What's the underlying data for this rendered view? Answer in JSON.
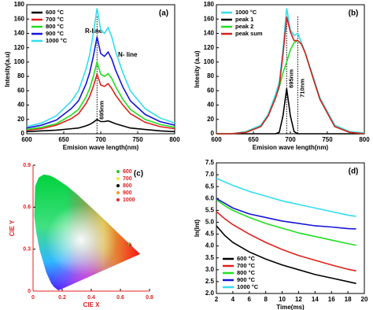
{
  "chart_data": [
    {
      "type": "line",
      "label": "(a)",
      "xlabel": "Emision wave length(nm)",
      "ylabel": "Intesity(a.u)",
      "xlim": [
        600,
        800
      ],
      "xticks": [
        600,
        650,
        700,
        750,
        800
      ],
      "ylim": [
        0,
        180
      ],
      "yticks": [
        0,
        20,
        40,
        60,
        80,
        100,
        120,
        140,
        160,
        180
      ],
      "x": [
        600,
        620,
        640,
        660,
        670,
        680,
        685,
        690,
        695,
        700,
        705,
        710,
        715,
        720,
        730,
        740,
        760,
        780,
        800
      ],
      "series": [
        {
          "name": "600 °C",
          "color": "#000000",
          "values": [
            3,
            4,
            5,
            7,
            8,
            11,
            13,
            16,
            20,
            17,
            17,
            18,
            16,
            14,
            11,
            8,
            6,
            4,
            3
          ]
        },
        {
          "name": "700 °C",
          "color": "#e0201c",
          "values": [
            5,
            7,
            12,
            21,
            28,
            42,
            52,
            66,
            83,
            68,
            66,
            70,
            63,
            54,
            40,
            28,
            16,
            10,
            7
          ]
        },
        {
          "name": "800 °C",
          "color": "#22dd22",
          "values": [
            6,
            9,
            14,
            26,
            34,
            51,
            63,
            80,
            100,
            83,
            80,
            84,
            77,
            66,
            48,
            34,
            20,
            13,
            9
          ]
        },
        {
          "name": "900 °C",
          "color": "#1515d8",
          "values": [
            8,
            12,
            19,
            35,
            46,
            69,
            85,
            108,
            135,
            112,
            108,
            114,
            104,
            89,
            65,
            46,
            27,
            17,
            12
          ]
        },
        {
          "name": "1000 °C",
          "color": "#33ddee",
          "values": [
            10,
            15,
            25,
            45,
            60,
            90,
            110,
            140,
            175,
            145,
            140,
            148,
            135,
            115,
            85,
            60,
            35,
            22,
            15
          ]
        }
      ],
      "annotations": [
        "R-line",
        "N- line"
      ],
      "reference_lines": [
        {
          "x": 695,
          "label": "695nm"
        }
      ],
      "legend": "upper left"
    },
    {
      "type": "line",
      "label": "(b)",
      "xlabel": "Emision wave length(nm)",
      "ylabel": "Intesity (a.u)",
      "xlim": [
        600,
        800
      ],
      "xticks": [
        600,
        650,
        700,
        750,
        800
      ],
      "ylim": [
        0,
        180
      ],
      "yticks": [
        0,
        20,
        40,
        60,
        80,
        100,
        120,
        140,
        160,
        180
      ],
      "x": [
        600,
        620,
        640,
        660,
        670,
        680,
        685,
        690,
        695,
        700,
        705,
        710,
        715,
        720,
        730,
        740,
        760,
        780,
        800
      ],
      "series": [
        {
          "name": "1000 °C",
          "color": "#33ddee",
          "values": [
            0,
            0,
            3,
            12,
            27,
            55,
            72,
            118,
            175,
            145,
            137,
            140,
            127,
            113,
            82,
            50,
            12,
            3,
            1
          ]
        },
        {
          "name": "peak 1",
          "color": "#000000",
          "values": [
            0,
            0,
            0,
            0,
            0,
            0,
            2,
            25,
            63,
            25,
            3,
            0,
            0,
            0,
            0,
            0,
            0,
            0,
            0
          ]
        },
        {
          "name": "peak  2",
          "color": "#22dd22",
          "values": [
            0,
            0,
            2,
            10,
            25,
            50,
            65,
            85,
            100,
            117,
            127,
            130,
            125,
            113,
            80,
            48,
            10,
            2,
            0
          ]
        },
        {
          "name": "peak sum",
          "color": "#d42020",
          "values": [
            0,
            0,
            2,
            10,
            25,
            50,
            67,
            110,
            163,
            142,
            130,
            130,
            125,
            113,
            80,
            48,
            10,
            2,
            0
          ]
        }
      ],
      "reference_lines": [
        {
          "x": 695,
          "label": "695nm"
        },
        {
          "x": 710,
          "label": "710nm"
        }
      ],
      "legend": "upper left"
    },
    {
      "type": "scatter",
      "label": "(c)",
      "xlabel": "CIE X",
      "ylabel": "CIE Y",
      "xlim": [
        0,
        0.8
      ],
      "xticks": [
        0,
        0.2,
        0.4,
        0.6,
        0.8
      ],
      "ylim": [
        0,
        0.9
      ],
      "yticks": [
        0,
        0.3,
        0.6,
        0.9
      ],
      "series": [
        {
          "name": "600",
          "color": "#22cc22",
          "x": [
            0.655
          ],
          "values": [
            0.335
          ]
        },
        {
          "name": "700",
          "color": "#eeee22",
          "x": [
            0.66
          ],
          "values": [
            0.33
          ]
        },
        {
          "name": "800",
          "color": "#000000",
          "x": [
            0.665
          ],
          "values": [
            0.332
          ]
        },
        {
          "name": "900",
          "color": "#ff9922",
          "x": [
            0.662
          ],
          "values": [
            0.338
          ]
        },
        {
          "name": "1000",
          "color": "#ee2222",
          "x": [
            0.668
          ],
          "values": [
            0.328
          ]
        }
      ],
      "legend_text_color": "#e02020",
      "legend": "upper right"
    },
    {
      "type": "line",
      "label": "(d)",
      "xlabel": "Time(ms)",
      "ylabel": "ln(Int)",
      "xlim": [
        2,
        20
      ],
      "xticks": [
        2,
        4,
        6,
        8,
        10,
        12,
        14,
        16,
        18,
        20
      ],
      "ylim": [
        2.0,
        7.5
      ],
      "yticks": [
        {
          "value": 2.0,
          "label": "2.0"
        },
        2.5,
        {
          "value": 3.0,
          "label": "3.0"
        },
        3.5,
        {
          "value": 4.0,
          "label": "4.0"
        },
        4.5,
        {
          "value": 5.0,
          "label": "5.0"
        },
        5.5,
        {
          "value": 6.0,
          "label": "6.0"
        },
        6.5,
        {
          "value": 7.0,
          "label": "7.0"
        },
        7.5
      ],
      "x": [
        2,
        3,
        4,
        6,
        8,
        10,
        12,
        14,
        16,
        18,
        19
      ],
      "series": [
        {
          "name": "600 °C",
          "color": "#000000",
          "values": [
            4.85,
            4.45,
            4.15,
            3.75,
            3.45,
            3.2,
            3.0,
            2.8,
            2.65,
            2.5,
            2.42
          ]
        },
        {
          "name": "700 °C",
          "color": "#e0201c",
          "values": [
            5.45,
            5.15,
            4.9,
            4.5,
            4.15,
            3.85,
            3.6,
            3.4,
            3.2,
            3.02,
            2.95
          ]
        },
        {
          "name": "800 °C",
          "color": "#22dd22",
          "values": [
            5.95,
            5.7,
            5.5,
            5.2,
            4.95,
            4.75,
            4.55,
            4.4,
            4.25,
            4.1,
            4.03
          ]
        },
        {
          "name": "900 °C",
          "color": "#1515d8",
          "values": [
            6.0,
            5.8,
            5.6,
            5.35,
            5.2,
            5.05,
            4.95,
            4.85,
            4.8,
            4.73,
            4.72
          ]
        },
        {
          "name": "1000 °C",
          "color": "#33ddee",
          "values": [
            6.85,
            6.7,
            6.55,
            6.3,
            6.1,
            5.9,
            5.75,
            5.6,
            5.45,
            5.3,
            5.25
          ]
        }
      ],
      "legend": "lower left"
    }
  ]
}
